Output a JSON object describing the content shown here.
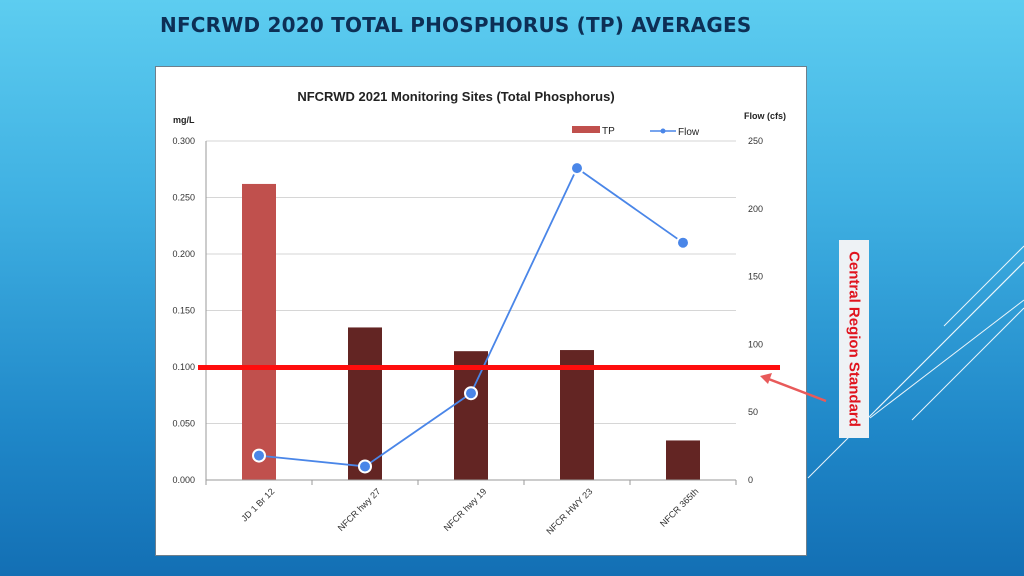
{
  "slide": {
    "title": "NFCRWD 2020 TOTAL PHOSPHORUS (TP) AVERAGES",
    "side_label": "Central Region Standard"
  },
  "chart_data": {
    "type": "bar",
    "title": "NFCRWD 2021 Monitoring Sites (Total Phosphorus)",
    "ylabel": "mg/L",
    "y2label": "Flow (cfs)",
    "categories": [
      "JD 1 Br 12",
      "NFCR hwy 27",
      "NFCR hwy 19",
      "NFCR HWY 23",
      "NFCR 365th"
    ],
    "ylim": [
      0,
      0.3
    ],
    "y2lim": [
      0,
      250
    ],
    "yticks": [
      "0.000",
      "0.050",
      "0.100",
      "0.150",
      "0.200",
      "0.250",
      "0.300"
    ],
    "y2ticks": [
      "0",
      "50",
      "100",
      "150",
      "200",
      "250"
    ],
    "grid": true,
    "legend": "top-right",
    "series": [
      {
        "name": "TP",
        "type": "bar",
        "axis": "left",
        "values": [
          0.262,
          0.135,
          0.114,
          0.115,
          0.035
        ],
        "colors": [
          "#c0504d",
          "#632523",
          "#632523",
          "#632523",
          "#632523"
        ]
      },
      {
        "name": "Flow",
        "type": "line",
        "axis": "right",
        "values": [
          18,
          10,
          64,
          230,
          175
        ],
        "color": "#4a86e8"
      }
    ],
    "reference_line": {
      "value": 0.1,
      "color": "#ff0d0d"
    }
  }
}
